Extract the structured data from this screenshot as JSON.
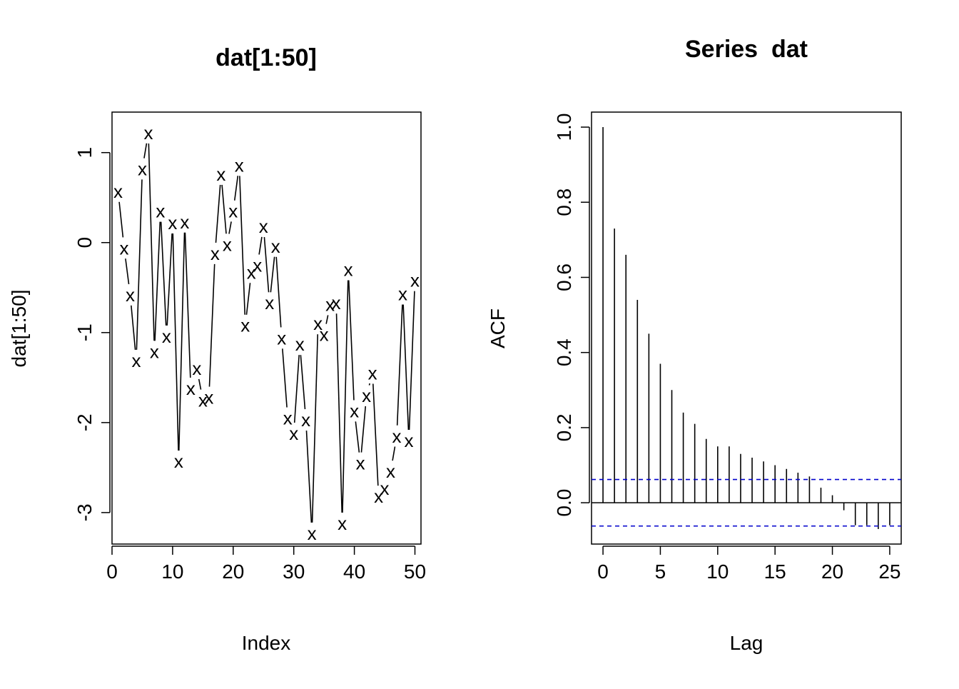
{
  "chart_data": [
    {
      "type": "line",
      "title": "dat[1:50]",
      "xlabel": "Index",
      "ylabel": "dat[1:50]",
      "point_symbol": "x",
      "xlim": [
        0,
        51
      ],
      "ylim": [
        -3.35,
        1.45
      ],
      "xticks": [
        0,
        10,
        20,
        30,
        40,
        50
      ],
      "xtick_labels": [
        "0",
        "10",
        "20",
        "30",
        "40",
        "50"
      ],
      "yticks": [
        -3,
        -2,
        -1,
        0,
        1
      ],
      "ytick_labels": [
        "-3",
        "-2",
        "-1",
        "0",
        "1"
      ],
      "grid": false,
      "legend": "none",
      "x": [
        1,
        2,
        3,
        4,
        5,
        6,
        7,
        8,
        9,
        10,
        11,
        12,
        13,
        14,
        15,
        16,
        17,
        18,
        19,
        20,
        21,
        22,
        23,
        24,
        25,
        26,
        27,
        28,
        29,
        30,
        31,
        32,
        33,
        34,
        35,
        36,
        37,
        38,
        39,
        40,
        41,
        42,
        43,
        44,
        45,
        46,
        47,
        48,
        49,
        50
      ],
      "values": [
        0.57,
        -0.06,
        -0.58,
        -1.31,
        0.82,
        1.22,
        -1.21,
        0.35,
        -1.04,
        0.22,
        -2.43,
        0.23,
        -1.62,
        -1.4,
        -1.75,
        -1.72,
        -0.12,
        0.76,
        -0.02,
        0.35,
        0.86,
        -0.92,
        -0.33,
        -0.25,
        0.18,
        -0.67,
        -0.04,
        -1.06,
        -1.95,
        -2.12,
        -1.13,
        -1.97,
        -3.23,
        -0.9,
        -1.02,
        -0.69,
        -0.67,
        -3.12,
        -0.3,
        -1.87,
        -2.45,
        -1.7,
        -1.45,
        -2.82,
        -2.73,
        -2.54,
        -2.15,
        -0.57,
        -2.2,
        -0.42
      ]
    },
    {
      "type": "bar",
      "title": "Series  dat",
      "xlabel": "Lag",
      "ylabel": "ACF",
      "xlim": [
        -1,
        26
      ],
      "ylim": [
        -0.11,
        1.04
      ],
      "xticks": [
        0,
        5,
        10,
        15,
        20,
        25
      ],
      "xtick_labels": [
        "0",
        "5",
        "10",
        "15",
        "20",
        "25"
      ],
      "yticks": [
        0.0,
        0.2,
        0.4,
        0.6,
        0.8,
        1.0
      ],
      "ytick_labels": [
        "0.0",
        "0.2",
        "0.4",
        "0.6",
        "0.8",
        "1.0"
      ],
      "grid": false,
      "legend": "none",
      "lags": [
        0,
        1,
        2,
        3,
        4,
        5,
        6,
        7,
        8,
        9,
        10,
        11,
        12,
        13,
        14,
        15,
        16,
        17,
        18,
        19,
        20,
        21,
        22,
        23,
        24,
        25
      ],
      "values": [
        1.0,
        0.73,
        0.66,
        0.54,
        0.45,
        0.37,
        0.3,
        0.24,
        0.21,
        0.17,
        0.15,
        0.15,
        0.13,
        0.12,
        0.11,
        0.1,
        0.09,
        0.08,
        0.07,
        0.04,
        0.02,
        -0.02,
        -0.06,
        -0.06,
        -0.07,
        -0.06
      ],
      "confidence_bound": 0.062,
      "confidence_color": "#0000cc",
      "zero_line": true
    }
  ]
}
